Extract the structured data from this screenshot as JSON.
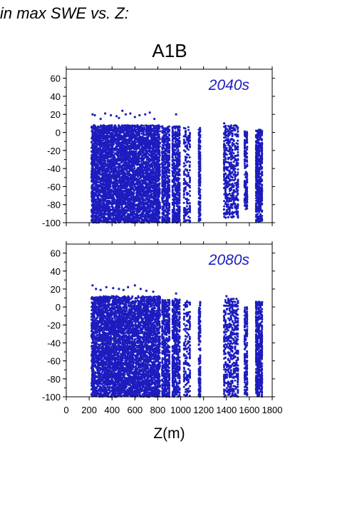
{
  "figure": {
    "heading": "in max SWE vs. Z:",
    "scenario": "A1B",
    "series_color": "#1c1cbf"
  },
  "chart_data": [
    {
      "type": "scatter",
      "title": "",
      "annotation": "2040s",
      "xlabel": "Z(m)",
      "ylabel": "",
      "xlim": [
        0,
        1800
      ],
      "ylim": [
        -100,
        70
      ],
      "xticks": [
        0,
        200,
        400,
        600,
        800,
        1000,
        1200,
        1400,
        1600,
        1800
      ],
      "yticks": [
        -100,
        -80,
        -60,
        -40,
        -20,
        0,
        20,
        40,
        60
      ],
      "grid": false,
      "elevation_bands": [
        {
          "x": [
            220,
            820
          ],
          "y": [
            -100,
            8
          ],
          "density": "dense"
        },
        {
          "x": [
            840,
            900
          ],
          "y": [
            -100,
            7
          ],
          "density": "medium"
        },
        {
          "x": [
            930,
            990
          ],
          "y": [
            -100,
            7
          ],
          "density": "medium"
        },
        {
          "x": [
            1030,
            1080
          ],
          "y": [
            -100,
            6
          ],
          "density": "sparse"
        },
        {
          "x": [
            1160,
            1170
          ],
          "y": [
            -100,
            5
          ],
          "density": "sparse"
        },
        {
          "x": [
            1380,
            1500
          ],
          "y": [
            -95,
            8
          ],
          "density": "medium"
        },
        {
          "x": [
            1560,
            1580
          ],
          "y": [
            -85,
            3
          ],
          "density": "sparse"
        },
        {
          "x": [
            1660,
            1710
          ],
          "y": [
            -100,
            3
          ],
          "density": "medium"
        }
      ],
      "outliers": [
        {
          "x": 230,
          "y": 20
        },
        {
          "x": 250,
          "y": 19
        },
        {
          "x": 300,
          "y": 15
        },
        {
          "x": 340,
          "y": 21
        },
        {
          "x": 390,
          "y": 19
        },
        {
          "x": 440,
          "y": 18
        },
        {
          "x": 460,
          "y": 16
        },
        {
          "x": 490,
          "y": 24
        },
        {
          "x": 520,
          "y": 20
        },
        {
          "x": 560,
          "y": 21
        },
        {
          "x": 600,
          "y": 17
        },
        {
          "x": 640,
          "y": 19
        },
        {
          "x": 690,
          "y": 20
        },
        {
          "x": 730,
          "y": 22
        },
        {
          "x": 770,
          "y": 15
        },
        {
          "x": 960,
          "y": 20
        },
        {
          "x": 1380,
          "y": 10
        }
      ]
    },
    {
      "type": "scatter",
      "title": "",
      "annotation": "2080s",
      "xlabel": "Z(m)",
      "ylabel": "",
      "xlim": [
        0,
        1800
      ],
      "ylim": [
        -100,
        70
      ],
      "xticks": [
        0,
        200,
        400,
        600,
        800,
        1000,
        1200,
        1400,
        1600,
        1800
      ],
      "yticks": [
        -100,
        -80,
        -60,
        -40,
        -20,
        0,
        20,
        40,
        60
      ],
      "grid": false,
      "elevation_bands": [
        {
          "x": [
            220,
            820
          ],
          "y": [
            -100,
            12
          ],
          "density": "dense"
        },
        {
          "x": [
            840,
            900
          ],
          "y": [
            -100,
            8
          ],
          "density": "medium"
        },
        {
          "x": [
            930,
            990
          ],
          "y": [
            -100,
            9
          ],
          "density": "medium"
        },
        {
          "x": [
            1030,
            1080
          ],
          "y": [
            -100,
            8
          ],
          "density": "sparse"
        },
        {
          "x": [
            1160,
            1170
          ],
          "y": [
            -100,
            6
          ],
          "density": "sparse"
        },
        {
          "x": [
            1380,
            1500
          ],
          "y": [
            -100,
            10
          ],
          "density": "medium"
        },
        {
          "x": [
            1560,
            1580
          ],
          "y": [
            -100,
            0
          ],
          "density": "sparse"
        },
        {
          "x": [
            1660,
            1710
          ],
          "y": [
            -100,
            6
          ],
          "density": "medium"
        }
      ],
      "outliers": [
        {
          "x": 230,
          "y": 24
        },
        {
          "x": 260,
          "y": 20
        },
        {
          "x": 300,
          "y": 19
        },
        {
          "x": 350,
          "y": 22
        },
        {
          "x": 410,
          "y": 21
        },
        {
          "x": 460,
          "y": 20
        },
        {
          "x": 500,
          "y": 19
        },
        {
          "x": 540,
          "y": 22
        },
        {
          "x": 600,
          "y": 24
        },
        {
          "x": 650,
          "y": 20
        },
        {
          "x": 700,
          "y": 18
        },
        {
          "x": 760,
          "y": 17
        },
        {
          "x": 960,
          "y": 15
        },
        {
          "x": 1400,
          "y": 12
        }
      ]
    }
  ]
}
